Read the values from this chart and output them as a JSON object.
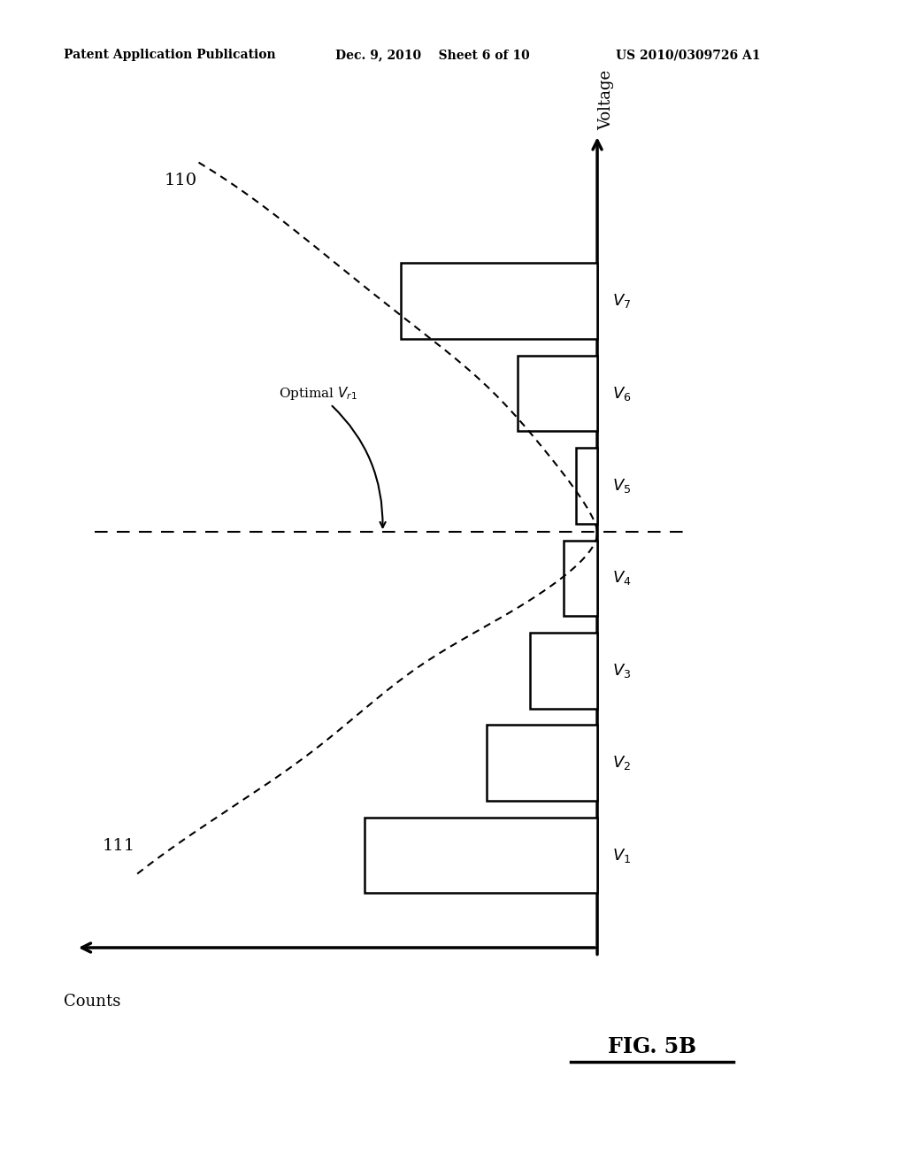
{
  "header_left": "Patent Application Publication",
  "header_mid": "Dec. 9, 2010    Sheet 6 of 10",
  "header_right": "US 2010/0309726 A1",
  "fig_label": "FIG. 5B",
  "voltage_label": "Voltage",
  "counts_label": "Counts",
  "curve_label_110": "110",
  "curve_label_111": "111",
  "optimal_label": "Optimal $V_{r1}$",
  "voltage_levels": [
    "$V_1$",
    "$V_2$",
    "$V_3$",
    "$V_4$",
    "$V_5$",
    "$V_6$",
    "$V_7$"
  ],
  "bar_widths": [
    3.8,
    1.8,
    1.1,
    0.55,
    0.35,
    1.3,
    3.2
  ],
  "background_color": "#ffffff",
  "bar_color": "#ffffff",
  "bar_edge_color": "#000000"
}
